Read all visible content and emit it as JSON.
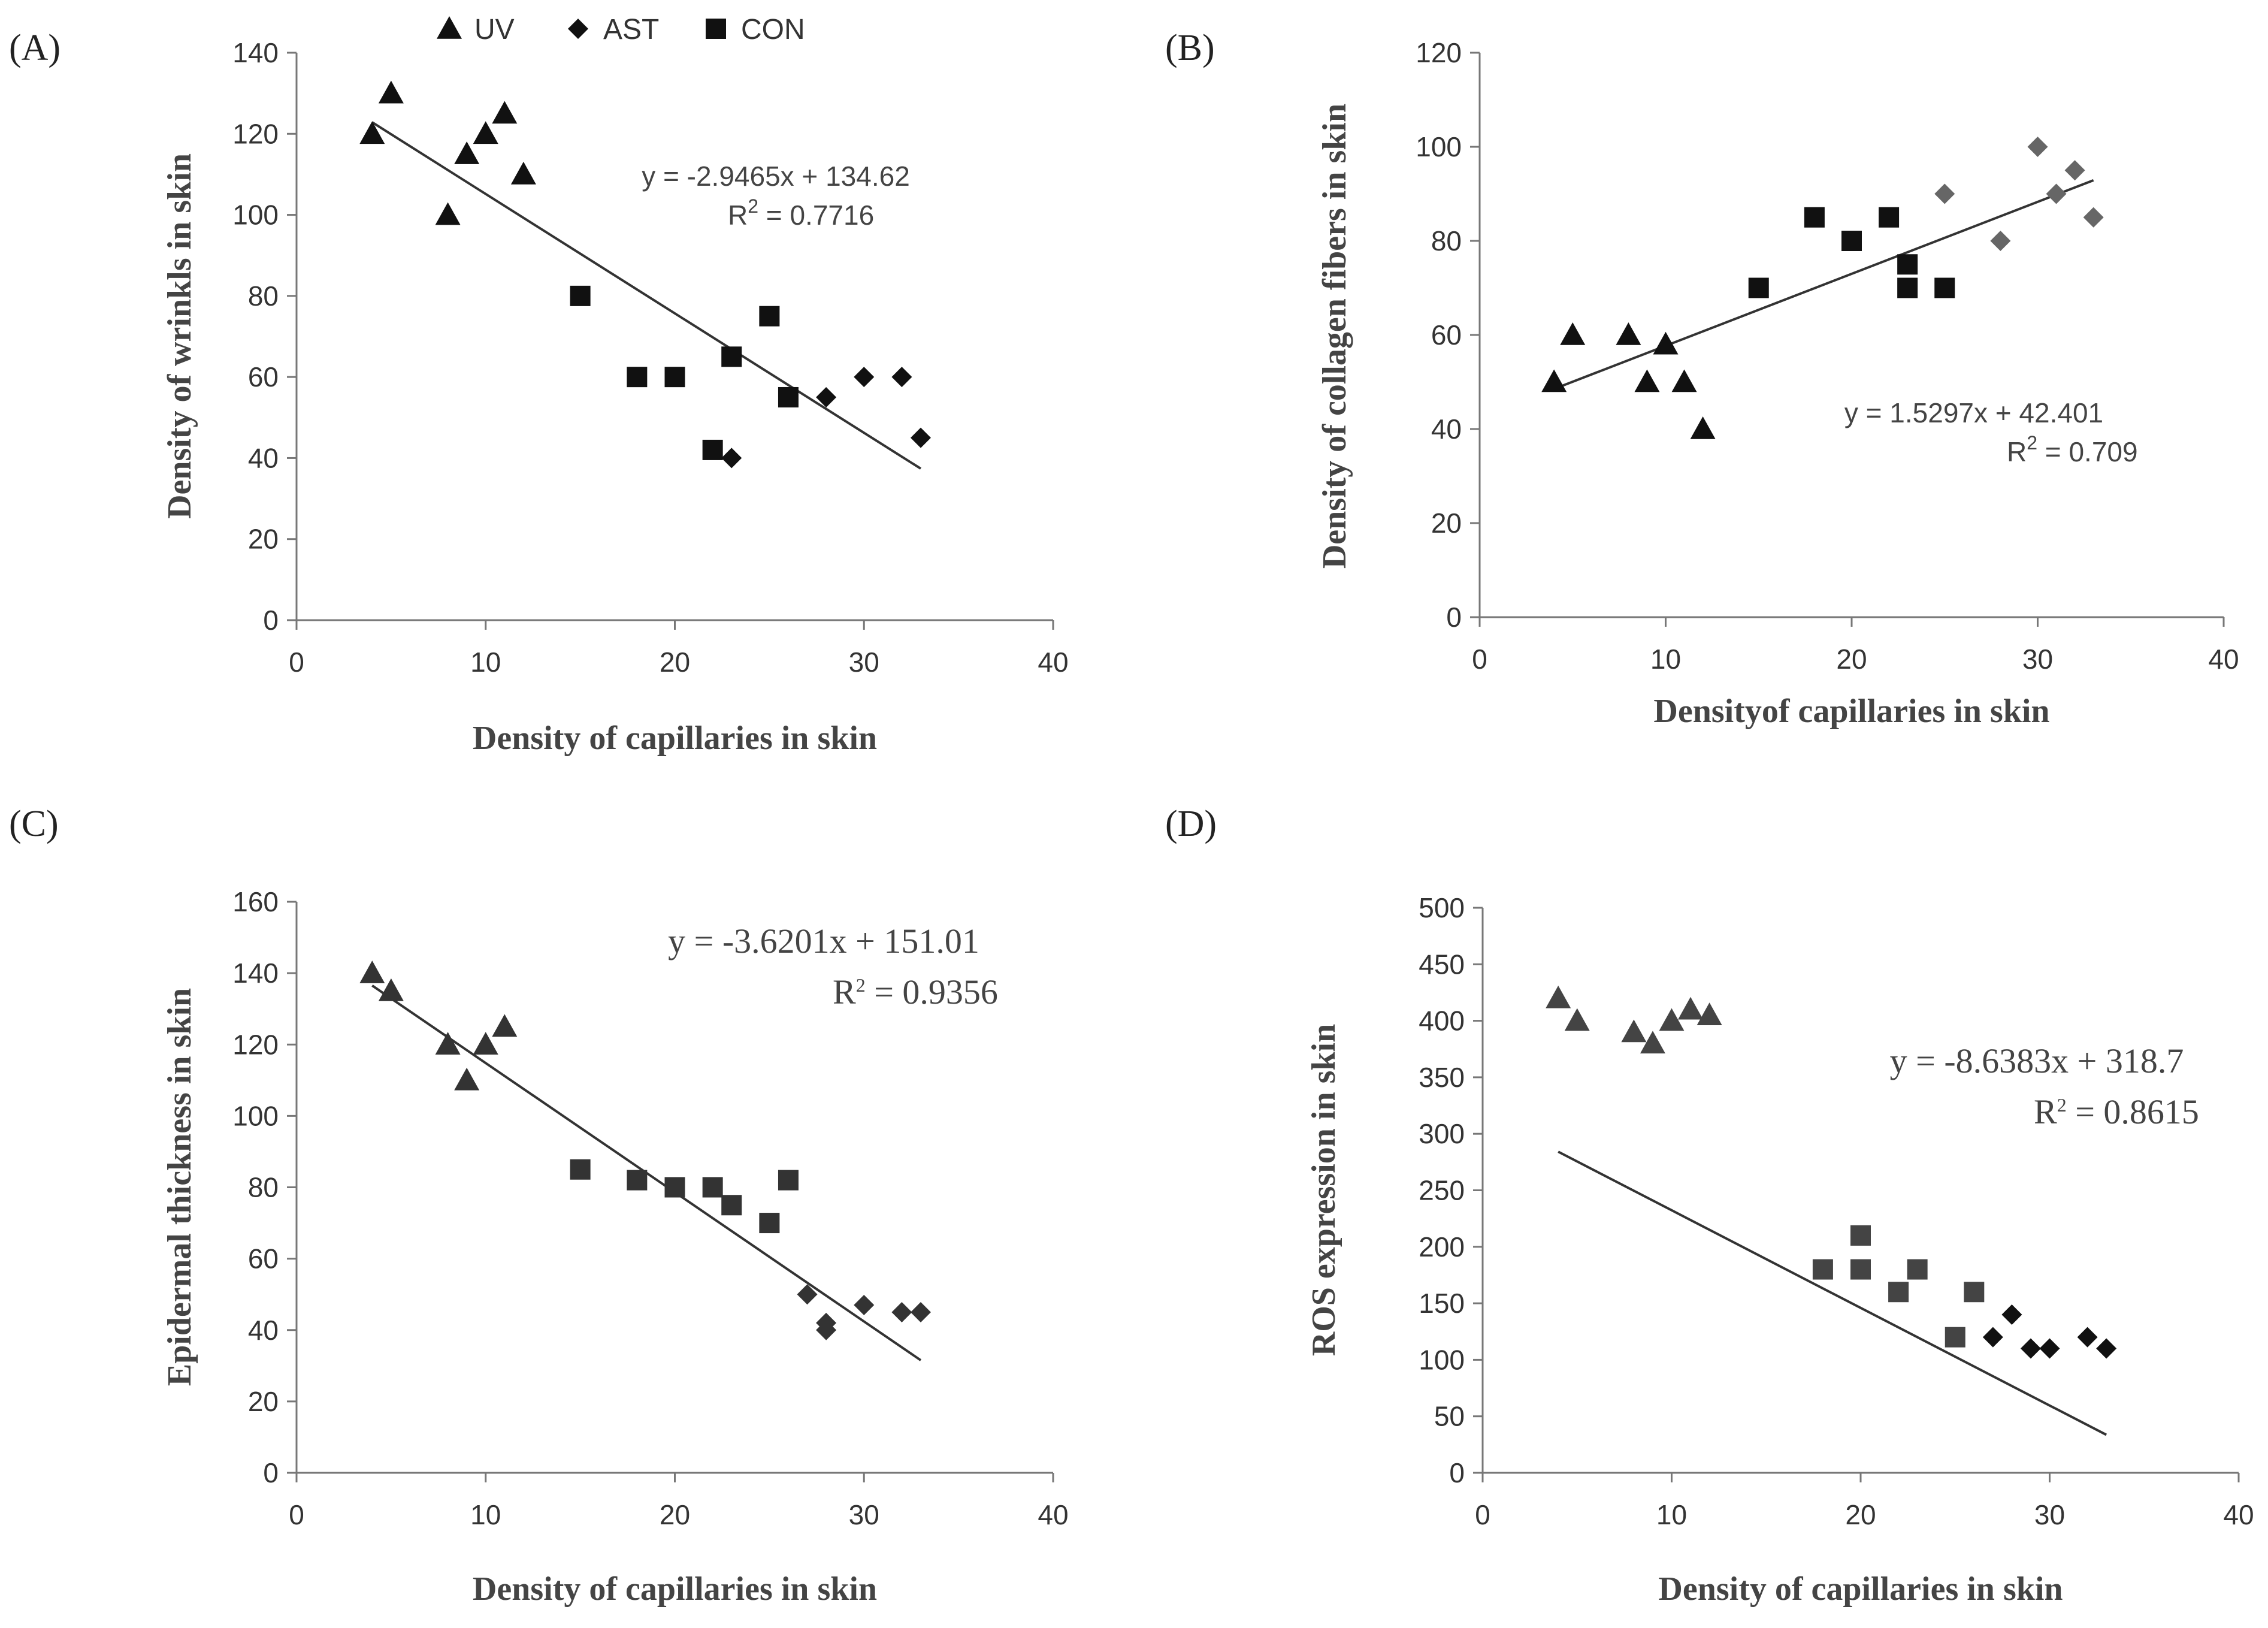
{
  "legend": [
    {
      "marker": "triangle",
      "label": "UV"
    },
    {
      "marker": "diamond",
      "label": "AST"
    },
    {
      "marker": "square",
      "label": "CON"
    }
  ],
  "chart_data": [
    {
      "type": "scatter",
      "panel": "(A)",
      "xlabel": "Density of capillaries in skin",
      "ylabel": "Density of wrinkls  in skin",
      "xlim": [
        0,
        40
      ],
      "ylim": [
        0,
        140
      ],
      "xticks": [
        0,
        10,
        20,
        30,
        40
      ],
      "yticks": [
        0,
        20,
        40,
        60,
        80,
        100,
        120,
        140
      ],
      "color": "#111111",
      "series": [
        {
          "name": "UV",
          "marker": "triangle",
          "points": [
            [
              4,
              120
            ],
            [
              5,
              130
            ],
            [
              8,
              100
            ],
            [
              9,
              115
            ],
            [
              10,
              120
            ],
            [
              11,
              125
            ],
            [
              12,
              110
            ]
          ]
        },
        {
          "name": "AST",
          "marker": "diamond",
          "points": [
            [
              23,
              40
            ],
            [
              28,
              55
            ],
            [
              30,
              60
            ],
            [
              32,
              60
            ],
            [
              33,
              45
            ]
          ]
        },
        {
          "name": "CON",
          "marker": "square",
          "points": [
            [
              15,
              80
            ],
            [
              18,
              60
            ],
            [
              20,
              60
            ],
            [
              22,
              42
            ],
            [
              23,
              65
            ],
            [
              25,
              75
            ],
            [
              26,
              55
            ]
          ]
        }
      ],
      "trendline": {
        "slope": -2.9465,
        "intercept": 134.62,
        "x_range": [
          4,
          33
        ]
      },
      "equation": {
        "line1": "y = -2.9465x + 134.62",
        "r2_label": "R",
        "r2_sup": "2",
        "r2_value": " = 0.7716"
      }
    },
    {
      "type": "scatter",
      "panel": "(B)",
      "xlabel": "Densityof capillaries in skin",
      "ylabel": "Density of collagen fibers in skin",
      "xlim": [
        0,
        40
      ],
      "ylim": [
        0,
        120
      ],
      "xticks": [
        0,
        10,
        20,
        30,
        40
      ],
      "yticks": [
        0,
        20,
        40,
        60,
        80,
        100,
        120
      ],
      "color": "#111111",
      "series": [
        {
          "name": "UV",
          "marker": "triangle",
          "points": [
            [
              4,
              50
            ],
            [
              5,
              60
            ],
            [
              8,
              60
            ],
            [
              9,
              50
            ],
            [
              10,
              58
            ],
            [
              11,
              50
            ],
            [
              12,
              40
            ]
          ]
        },
        {
          "name": "AST",
          "marker": "diamond",
          "color": "#666666",
          "points": [
            [
              25,
              90
            ],
            [
              28,
              80
            ],
            [
              30,
              100
            ],
            [
              31,
              90
            ],
            [
              32,
              95
            ],
            [
              33,
              85
            ]
          ]
        },
        {
          "name": "CON",
          "marker": "square",
          "points": [
            [
              15,
              70
            ],
            [
              18,
              85
            ],
            [
              20,
              80
            ],
            [
              22,
              85
            ],
            [
              23,
              75
            ],
            [
              23,
              70
            ],
            [
              25,
              70
            ]
          ]
        }
      ],
      "trendline": {
        "slope": 1.5297,
        "intercept": 42.401,
        "x_range": [
          4,
          33
        ]
      },
      "equation": {
        "line1": "y = 1.5297x + 42.401",
        "r2_label": "R",
        "r2_sup": "2",
        "r2_value": " = 0.709"
      }
    },
    {
      "type": "scatter",
      "panel": "(C)",
      "xlabel": "Density of capillaries in skin",
      "ylabel": "Epidermal  thickness in skin",
      "xlim": [
        0,
        40
      ],
      "ylim": [
        0,
        160
      ],
      "xticks": [
        0,
        10,
        20,
        30,
        40
      ],
      "yticks": [
        0,
        20,
        40,
        60,
        80,
        100,
        120,
        140,
        160
      ],
      "color": "#333333",
      "series": [
        {
          "name": "UV",
          "marker": "triangle",
          "points": [
            [
              4,
              140
            ],
            [
              5,
              135
            ],
            [
              8,
              120
            ],
            [
              9,
              110
            ],
            [
              10,
              120
            ],
            [
              11,
              125
            ]
          ]
        },
        {
          "name": "AST",
          "marker": "diamond",
          "points": [
            [
              27,
              50
            ],
            [
              28,
              40
            ],
            [
              28,
              42
            ],
            [
              30,
              47
            ],
            [
              32,
              45
            ],
            [
              33,
              45
            ]
          ]
        },
        {
          "name": "CON",
          "marker": "square",
          "points": [
            [
              15,
              85
            ],
            [
              18,
              82
            ],
            [
              20,
              80
            ],
            [
              22,
              80
            ],
            [
              23,
              75
            ],
            [
              25,
              70
            ],
            [
              26,
              82
            ]
          ]
        }
      ],
      "trendline": {
        "slope": -3.6201,
        "intercept": 151.01,
        "x_range": [
          4,
          33
        ]
      },
      "equation": {
        "line1": "y = -3.6201x + 151.01",
        "r2_label": "R",
        "r2_sup": "2",
        "r2_value": " = 0.9356"
      }
    },
    {
      "type": "scatter",
      "panel": "(D)",
      "xlabel": "Density of capillaries in skin",
      "ylabel": "ROS expression in skin",
      "xlim": [
        0,
        40
      ],
      "ylim": [
        0,
        500
      ],
      "xticks": [
        0,
        10,
        20,
        30,
        40
      ],
      "yticks": [
        0,
        50,
        100,
        150,
        200,
        250,
        300,
        350,
        400,
        450,
        500
      ],
      "color": "#444444",
      "series": [
        {
          "name": "UV",
          "marker": "triangle",
          "points": [
            [
              4,
              420
            ],
            [
              5,
              400
            ],
            [
              8,
              390
            ],
            [
              9,
              380
            ],
            [
              10,
              400
            ],
            [
              11,
              410
            ],
            [
              12,
              405
            ]
          ]
        },
        {
          "name": "AST",
          "marker": "diamond",
          "color": "#111111",
          "points": [
            [
              27,
              120
            ],
            [
              28,
              140
            ],
            [
              29,
              110
            ],
            [
              30,
              110
            ],
            [
              32,
              120
            ],
            [
              33,
              110
            ]
          ]
        },
        {
          "name": "CON",
          "marker": "square",
          "points": [
            [
              18,
              180
            ],
            [
              20,
              180
            ],
            [
              20,
              210
            ],
            [
              22,
              160
            ],
            [
              23,
              180
            ],
            [
              25,
              120
            ],
            [
              26,
              160
            ]
          ]
        }
      ],
      "trendline": {
        "slope": -8.6383,
        "intercept": 318.7,
        "x_range": [
          4,
          33
        ]
      },
      "equation": {
        "line1": "y = -8.6383x + 318.7",
        "r2_label": "R",
        "r2_sup": "2",
        "r2_value": " = 0.8615"
      }
    }
  ]
}
